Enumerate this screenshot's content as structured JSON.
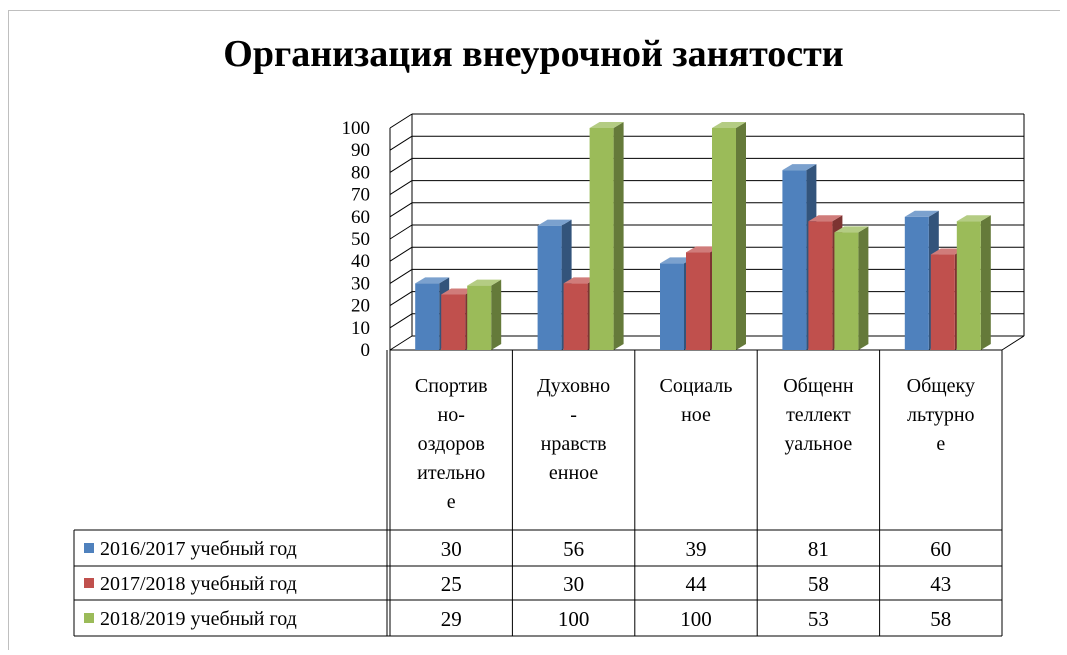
{
  "chart_data": {
    "type": "bar",
    "title": "Организация внеурочной занятости",
    "categories": [
      [
        "Спортив",
        "но-",
        "оздоров",
        "ительно",
        "е"
      ],
      [
        "Духовно",
        "-",
        "нравств",
        "енное"
      ],
      [
        "Социаль",
        "ное"
      ],
      [
        "Общенн",
        "теллект",
        "уальное"
      ],
      [
        "Общеку",
        "льтурно",
        "е"
      ]
    ],
    "series": [
      {
        "name": "2016/2017 учебный год",
        "color": "#4f81bd",
        "values": [
          30,
          56,
          39,
          81,
          60
        ]
      },
      {
        "name": "2017/2018 учебный год",
        "color": "#c0504d",
        "values": [
          25,
          30,
          44,
          58,
          43
        ]
      },
      {
        "name": "2018/2019 учебный год",
        "color": "#9bbb59",
        "values": [
          29,
          100,
          100,
          53,
          58
        ]
      }
    ],
    "ylim": [
      0,
      100
    ],
    "yticks": [
      0,
      10,
      20,
      30,
      40,
      50,
      60,
      70,
      80,
      90,
      100
    ],
    "grid": true,
    "legend": "data-table",
    "chart_style": "3d-clustered-column"
  }
}
